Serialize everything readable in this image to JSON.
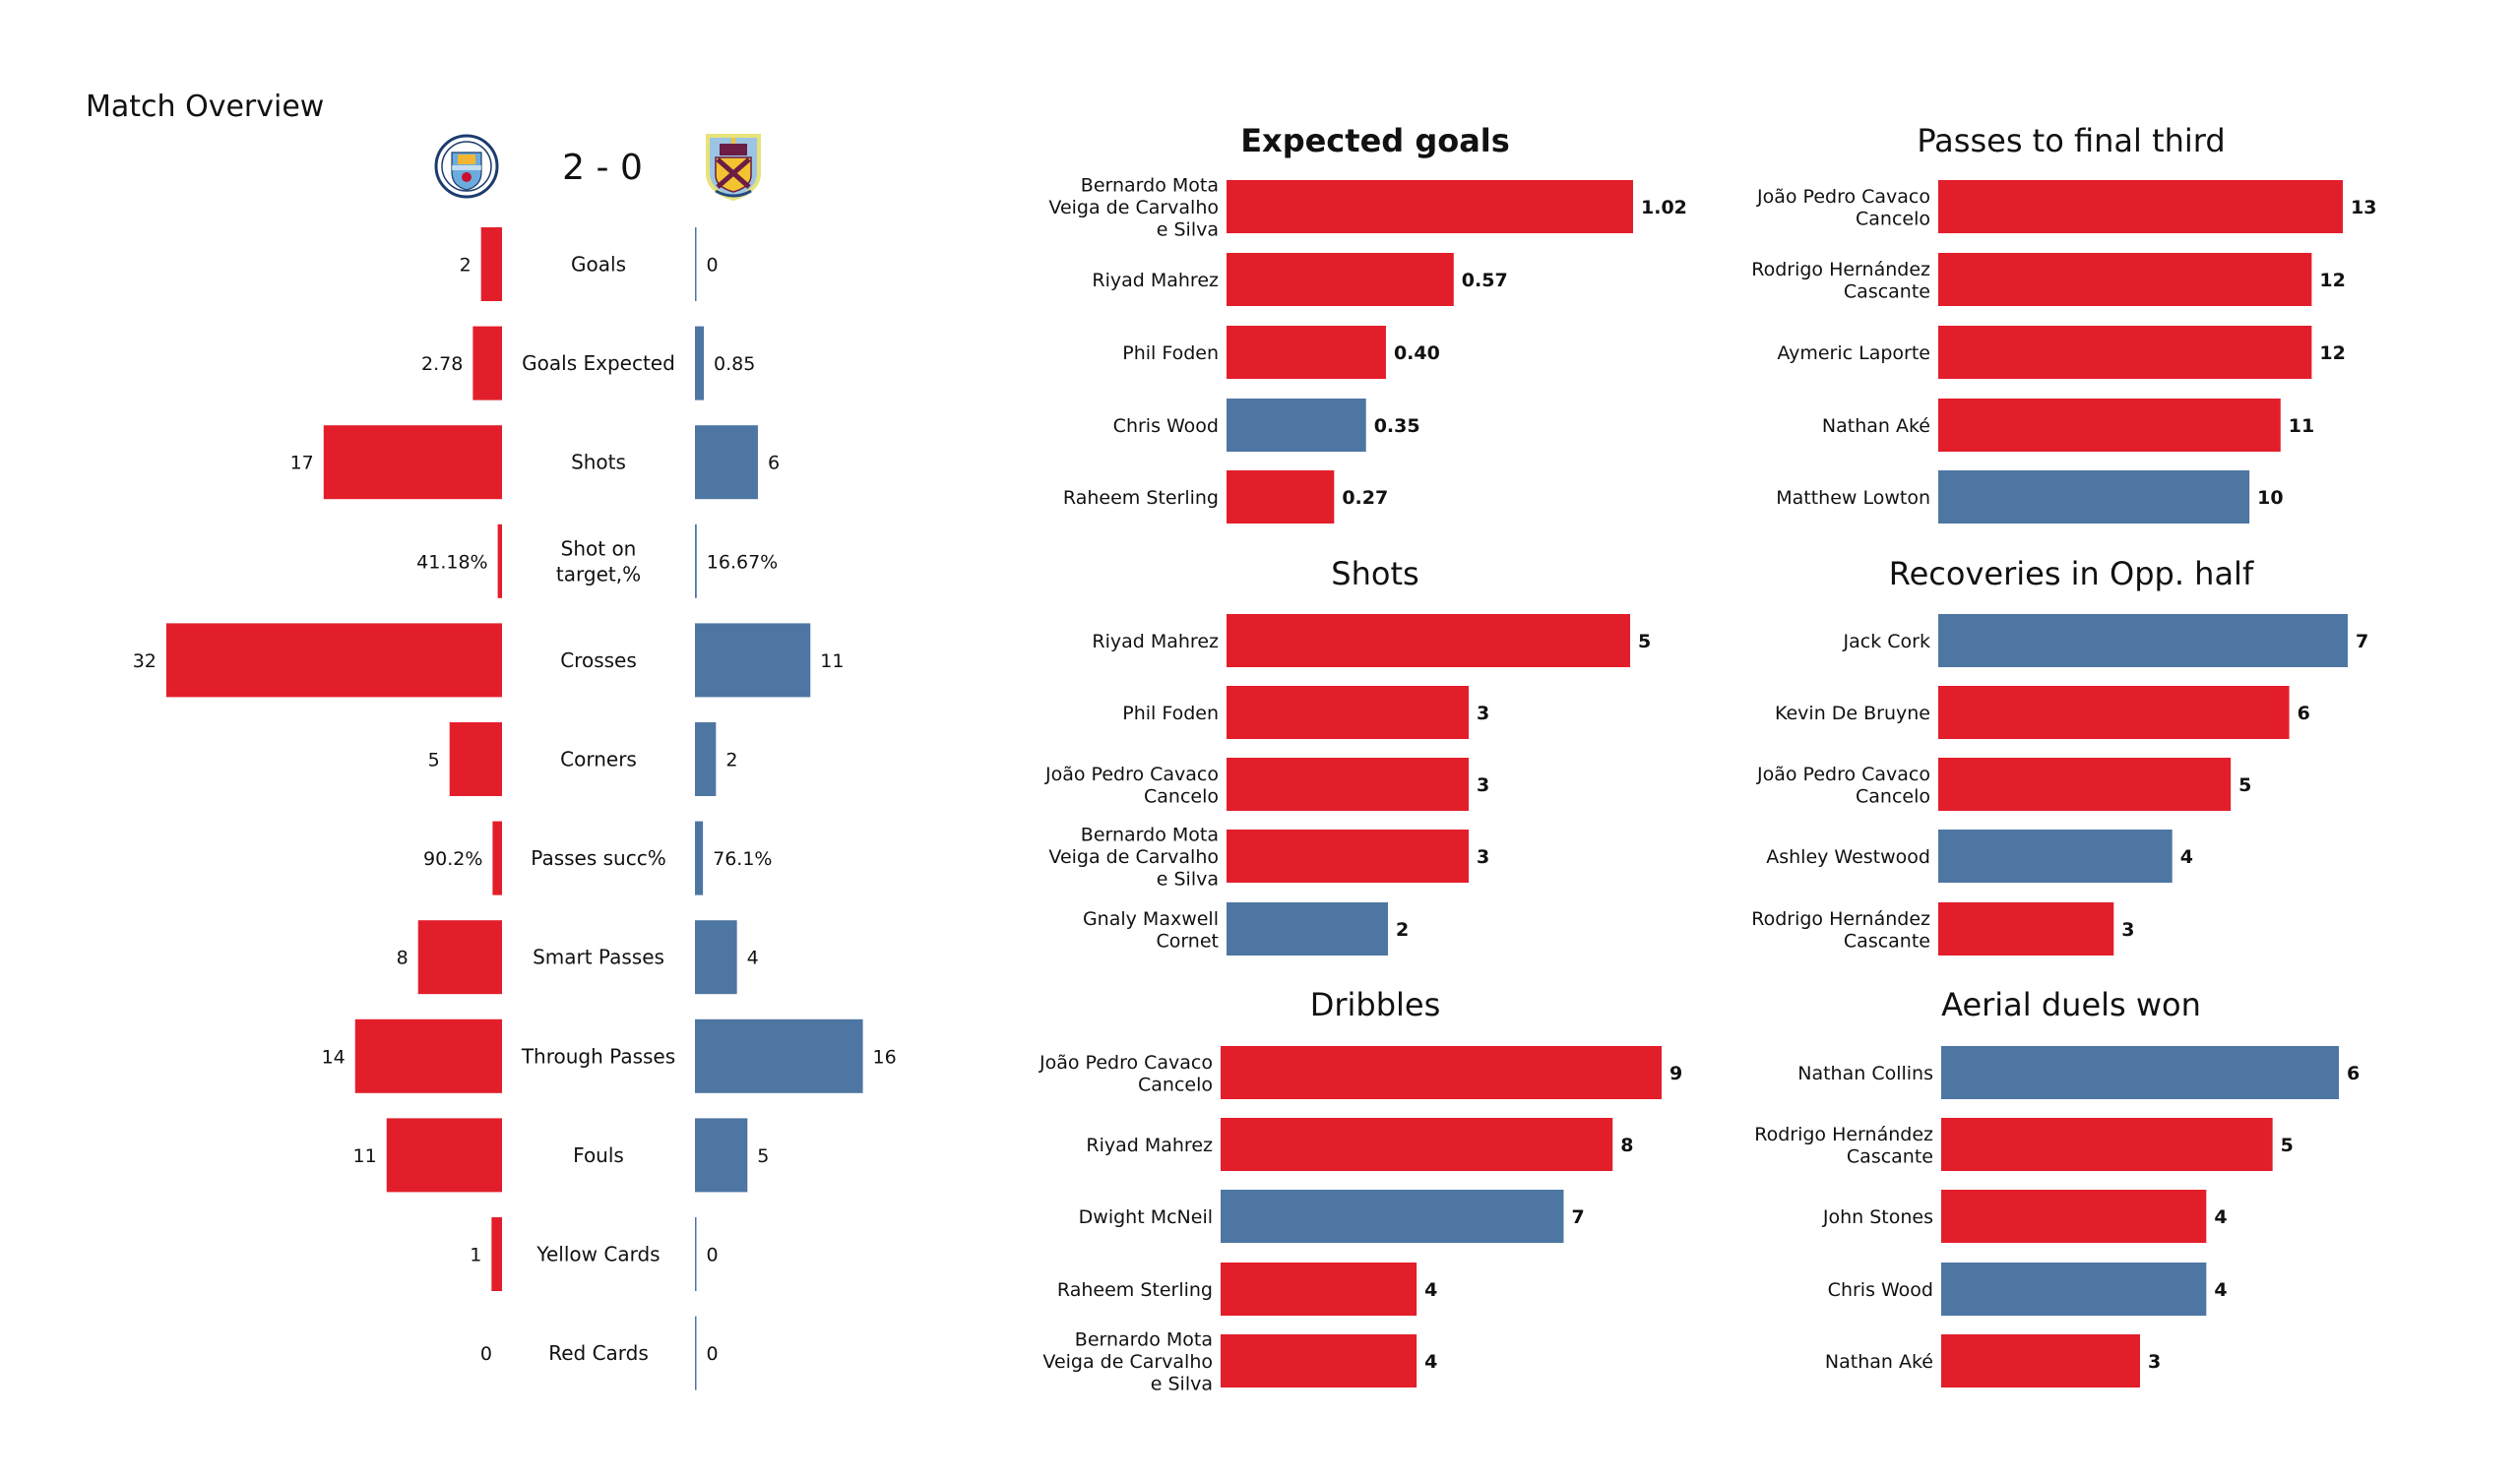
{
  "page": {
    "title": "Match Overview"
  },
  "match": {
    "home_team": "Manchester City",
    "away_team": "Burnley",
    "home_crest_icon": "manchester-city-crest-icon",
    "away_crest_icon": "burnley-crest-icon",
    "score": "2 - 0"
  },
  "colors": {
    "home": "#E31E2B",
    "away": "#4E76A2",
    "text": "#111111",
    "background": "#FFFFFF"
  },
  "chart_data": [
    {
      "type": "bar",
      "id": "match-overview",
      "title": "Match Overview",
      "orientation": "diverging-horizontal",
      "categories": [
        "Goals",
        "Goals Expected",
        "Shots",
        "Shot on target,%",
        "Crosses",
        "Corners",
        "Passes succ%",
        "Smart Passes",
        "Through Passes",
        "Fouls",
        "Yellow Cards",
        "Red Cards"
      ],
      "category_lines": [
        [
          "Goals"
        ],
        [
          "Goals Expected"
        ],
        [
          "Shots"
        ],
        [
          "Shot on",
          "target,%"
        ],
        [
          "Crosses"
        ],
        [
          "Corners"
        ],
        [
          "Passes succ%"
        ],
        [
          "Smart Passes"
        ],
        [
          "Through Passes"
        ],
        [
          "Fouls"
        ],
        [
          "Yellow Cards"
        ],
        [
          "Red Cards"
        ]
      ],
      "series": [
        {
          "name": "Manchester City",
          "side": "left",
          "values": [
            2,
            2.78,
            17,
            0.4118,
            32,
            5,
            0.902,
            8,
            14,
            11,
            1,
            0
          ],
          "labels": [
            "2",
            "2.78",
            "17",
            "41.18%",
            "32",
            "5",
            "90.2%",
            "8",
            "14",
            "11",
            "1",
            "0"
          ]
        },
        {
          "name": "Burnley",
          "side": "right",
          "values": [
            0,
            0.85,
            6,
            0.1667,
            11,
            2,
            0.761,
            4,
            16,
            5,
            0,
            0
          ],
          "labels": [
            "0",
            "0.85",
            "6",
            "16.67%",
            "11",
            "2",
            "76.1%",
            "4",
            "16",
            "5",
            "0",
            "0"
          ]
        }
      ],
      "xlim": [
        0,
        32
      ],
      "grid": false,
      "legend": "none"
    },
    {
      "type": "bar",
      "id": "expected-goals",
      "title": "Expected goals",
      "title_bold": true,
      "orientation": "horizontal",
      "categories": [
        [
          "Bernardo Mota",
          "Veiga de Carvalho",
          "e Silva"
        ],
        [
          "Riyad Mahrez"
        ],
        [
          "Phil Foden"
        ],
        [
          "Chris Wood"
        ],
        [
          "Raheem Sterling"
        ]
      ],
      "values": [
        1.02,
        0.57,
        0.4,
        0.35,
        0.27
      ],
      "labels": [
        "1.02",
        "0.57",
        "0.40",
        "0.35",
        "0.27"
      ],
      "teams": [
        "home",
        "home",
        "home",
        "away",
        "home"
      ],
      "xlim": [
        0,
        1.02
      ],
      "grid": false,
      "legend": "none"
    },
    {
      "type": "bar",
      "id": "passes-final-third",
      "title": "Passes to final third",
      "title_bold": false,
      "orientation": "horizontal",
      "categories": [
        [
          "João Pedro Cavaco",
          "Cancelo"
        ],
        [
          "Rodrigo Hernández",
          "Cascante"
        ],
        [
          "Aymeric  Laporte"
        ],
        [
          "Nathan Aké"
        ],
        [
          "Matthew Lowton"
        ]
      ],
      "values": [
        13,
        12,
        12,
        11,
        10
      ],
      "labels": [
        "13",
        "12",
        "12",
        "11",
        "10"
      ],
      "teams": [
        "home",
        "home",
        "home",
        "home",
        "away"
      ],
      "xlim": [
        0,
        13
      ],
      "grid": false,
      "legend": "none"
    },
    {
      "type": "bar",
      "id": "shots",
      "title": "Shots",
      "title_bold": false,
      "orientation": "horizontal",
      "categories": [
        [
          "Riyad Mahrez"
        ],
        [
          "Phil Foden"
        ],
        [
          "João Pedro Cavaco",
          "Cancelo"
        ],
        [
          "Bernardo Mota",
          "Veiga de Carvalho",
          "e Silva"
        ],
        [
          "Gnaly Maxwell",
          "Cornet"
        ]
      ],
      "values": [
        5,
        3,
        3,
        3,
        2
      ],
      "labels": [
        "5",
        "3",
        "3",
        "3",
        "2"
      ],
      "teams": [
        "home",
        "home",
        "home",
        "home",
        "away"
      ],
      "xlim": [
        0,
        5
      ],
      "grid": false,
      "legend": "none"
    },
    {
      "type": "bar",
      "id": "recoveries-opp-half",
      "title": "Recoveries in Opp. half",
      "title_bold": false,
      "orientation": "horizontal",
      "categories": [
        [
          "Jack Cork"
        ],
        [
          "Kevin De Bruyne"
        ],
        [
          "João Pedro Cavaco",
          "Cancelo"
        ],
        [
          "Ashley Westwood"
        ],
        [
          "Rodrigo Hernández",
          "Cascante"
        ]
      ],
      "values": [
        7,
        6,
        5,
        4,
        3
      ],
      "labels": [
        "7",
        "6",
        "5",
        "4",
        "3"
      ],
      "teams": [
        "away",
        "home",
        "home",
        "away",
        "home"
      ],
      "xlim": [
        0,
        7
      ],
      "grid": false,
      "legend": "none"
    },
    {
      "type": "bar",
      "id": "dribbles",
      "title": "Dribbles",
      "title_bold": false,
      "orientation": "horizontal",
      "categories": [
        [
          "João Pedro Cavaco",
          "Cancelo"
        ],
        [
          "Riyad Mahrez"
        ],
        [
          "Dwight McNeil"
        ],
        [
          "Raheem Sterling"
        ],
        [
          "Bernardo Mota",
          "Veiga de Carvalho",
          "e Silva"
        ]
      ],
      "values": [
        9,
        8,
        7,
        4,
        4
      ],
      "labels": [
        "9",
        "8",
        "7",
        "4",
        "4"
      ],
      "teams": [
        "home",
        "home",
        "away",
        "home",
        "home"
      ],
      "xlim": [
        0,
        9
      ],
      "grid": false,
      "legend": "none"
    },
    {
      "type": "bar",
      "id": "aerial-duels-won",
      "title": "Aerial duels won",
      "title_bold": false,
      "orientation": "horizontal",
      "categories": [
        [
          "Nathan Collins"
        ],
        [
          "Rodrigo Hernández",
          "Cascante"
        ],
        [
          "John Stones"
        ],
        [
          "Chris Wood"
        ],
        [
          "Nathan Aké"
        ]
      ],
      "values": [
        6,
        5,
        4,
        4,
        3
      ],
      "labels": [
        "6",
        "5",
        "4",
        "4",
        "3"
      ],
      "teams": [
        "away",
        "home",
        "home",
        "away",
        "home"
      ],
      "xlim": [
        0,
        6
      ],
      "grid": false,
      "legend": "none"
    }
  ]
}
